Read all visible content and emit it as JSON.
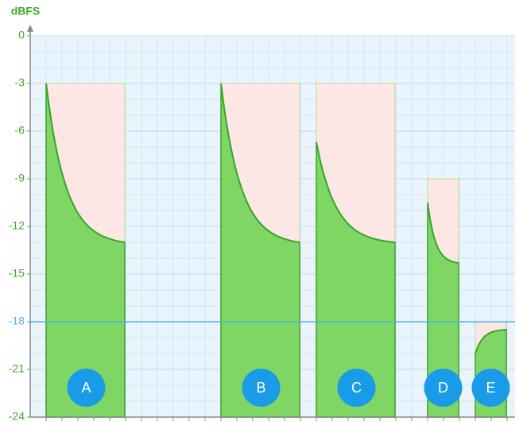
{
  "chart_data": {
    "type": "compression",
    "y_label": "dBFS",
    "ylim": [
      -24,
      0
    ],
    "yticks": [
      0,
      -3,
      -6,
      -9,
      -12,
      -15,
      -18,
      -21,
      -24
    ],
    "grid": true,
    "reference_line": {
      "value": -18,
      "color": "#4fb3e6"
    },
    "series": [
      {
        "name": "A",
        "ceiling": -3,
        "start": -3,
        "end": -13
      },
      {
        "name": "B",
        "ceiling": -3,
        "start": -3,
        "end": -13
      },
      {
        "name": "C",
        "ceiling": -3,
        "start": -6.7,
        "end": -13
      },
      {
        "name": "D",
        "ceiling": -9,
        "start": -10.5,
        "end": -14.3
      },
      {
        "name": "E",
        "ceiling": -18,
        "start": -20,
        "end": -18.5
      }
    ],
    "fill_color": "#7fd664",
    "line_color": "#36a62a",
    "ceiling_color": "#fde7e4",
    "badge_color": "#1a9be8"
  }
}
